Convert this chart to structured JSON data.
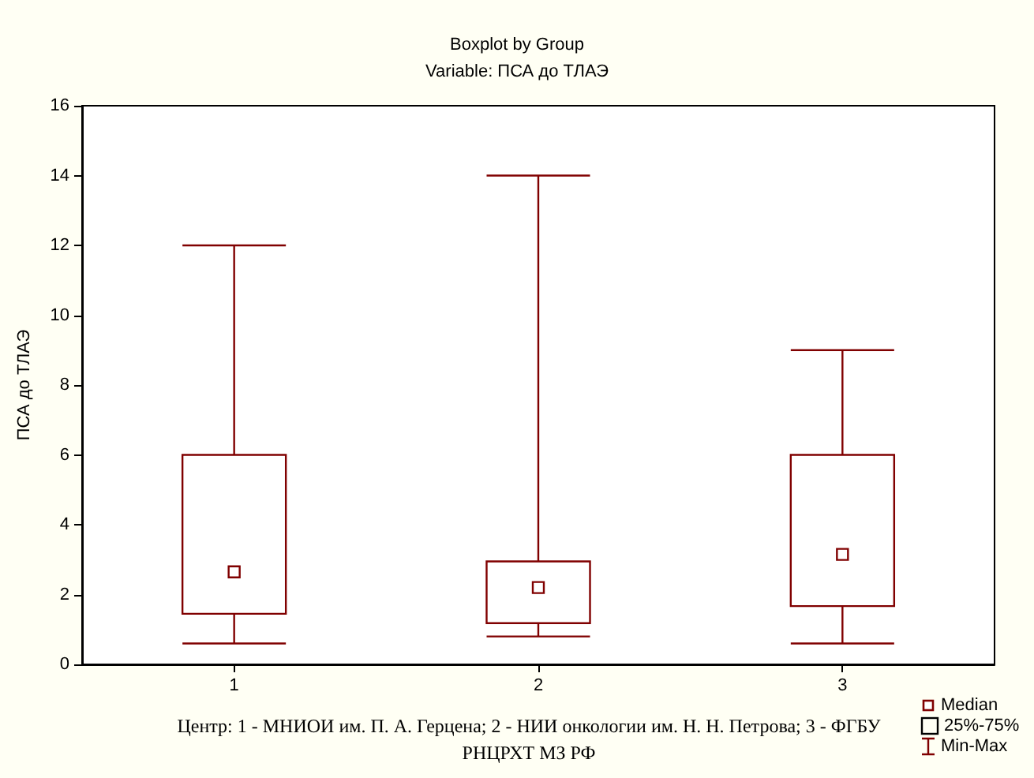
{
  "chart_data": {
    "type": "box",
    "title": "Boxplot by Group",
    "subtitle": "Variable: ПСА до ТЛАЭ",
    "xlabel": "Центр: 1 - МНИОИ им. П. А. Герцена; 2 - НИИ онкологии им. Н. Н. Петрова; 3 - ФГБУ РНЦРХТ МЗ РФ",
    "ylabel": "ПСА до ТЛАЭ",
    "categories": [
      "1",
      "2",
      "3"
    ],
    "boxes": [
      {
        "low": 0.6,
        "q1": 1.45,
        "median": 2.65,
        "q3": 6,
        "high": 12
      },
      {
        "low": 0.8,
        "q1": 1.18,
        "median": 2.2,
        "q3": 2.95,
        "high": 14
      },
      {
        "low": 0.6,
        "q1": 1.67,
        "median": 3.15,
        "q3": 6,
        "high": 9
      }
    ],
    "color": "#800000",
    "marker": "square",
    "ylim": [
      0,
      16
    ],
    "yticks": [
      0,
      2,
      4,
      6,
      8,
      10,
      12,
      14,
      16
    ],
    "grid": false,
    "annotations": [
      "Median",
      "25%-75%",
      "Min-Max"
    ]
  }
}
